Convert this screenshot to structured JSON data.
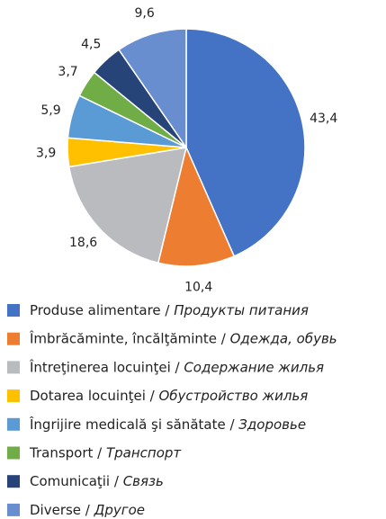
{
  "chart_data": {
    "type": "pie",
    "categories": [
      "Produse alimentare / Продукты питания",
      "Îmbrăcăminte, încălţăminte / Одежда, обувь",
      "Întreţinerea locuinţei / Содержание жилья",
      "Dotarea locuinţei / Обустройство жилья",
      "Îngrijire medicală şi sănătate / Здоровье",
      "Transport / Транспорт",
      "Comunicaţii / Связь",
      "Diverse / Другое"
    ],
    "values": [
      43.4,
      10.4,
      18.6,
      3.9,
      5.9,
      3.7,
      4.5,
      9.6
    ],
    "value_labels": [
      "43,4",
      "10,4",
      "18,6",
      "3,9",
      "5,9",
      "3,7",
      "4,5",
      "9,6"
    ],
    "colors": [
      "#4472c4",
      "#ed7d31",
      "#b9bbbf",
      "#ffc000",
      "#5b9bd5",
      "#70ad47",
      "#264478",
      "#698ed0"
    ]
  }
}
